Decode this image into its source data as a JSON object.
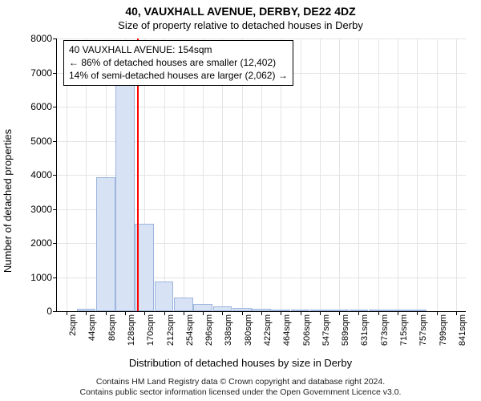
{
  "title": "40, VAUXHALL AVENUE, DERBY, DE22 4DZ",
  "subtitle": "Size of property relative to detached houses in Derby",
  "ylabel": "Number of detached properties",
  "xlabel": "Distribution of detached houses by size in Derby",
  "caption_lines": [
    "Contains HM Land Registry data © Crown copyright and database right 2024.",
    "Contains public sector information licensed under the Open Government Licence v3.0."
  ],
  "chart": {
    "type": "histogram",
    "ymin": 0,
    "ymax": 8000,
    "ytick_step": 1000,
    "x_categories": [
      "2sqm",
      "44sqm",
      "86sqm",
      "128sqm",
      "170sqm",
      "212sqm",
      "254sqm",
      "296sqm",
      "338sqm",
      "380sqm",
      "422sqm",
      "464sqm",
      "506sqm",
      "547sqm",
      "589sqm",
      "631sqm",
      "673sqm",
      "715sqm",
      "757sqm",
      "799sqm",
      "841sqm"
    ],
    "values": [
      0,
      80,
      3940,
      6650,
      2560,
      880,
      400,
      220,
      150,
      90,
      60,
      50,
      40,
      30,
      20,
      10,
      10,
      10,
      10,
      0,
      0
    ],
    "bar_fill": "#d7e2f4",
    "bar_border": "#9cb5dd",
    "grid_color": "#e4e4e4",
    "background": "#ffffff",
    "marker_value_sqm": 154,
    "marker_color": "#ff0000",
    "text_color": "#000000",
    "title_fontsize_pt": 11,
    "subtitle_fontsize_pt": 10,
    "label_fontsize_pt": 10,
    "tick_fontsize_pt": 9
  },
  "annotation": {
    "line1": "40 VAUXHALL AVENUE: 154sqm",
    "line2": "← 86% of detached houses are smaller (12,402)",
    "line3": "14% of semi-detached houses are larger (2,062) →"
  }
}
